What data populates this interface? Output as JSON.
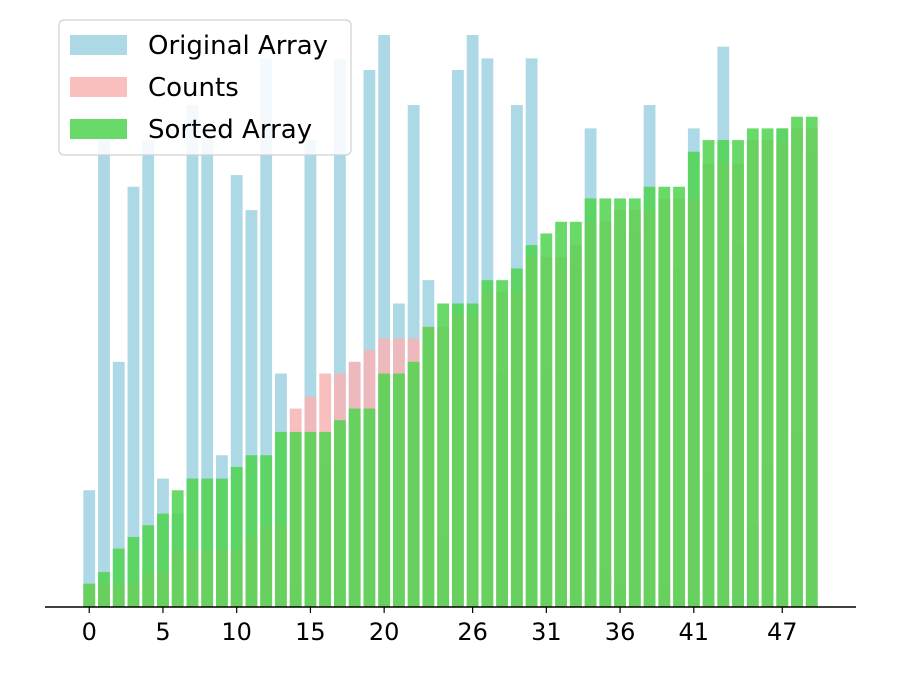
{
  "chart_data": {
    "type": "bar",
    "x": [
      0,
      1,
      2,
      3,
      4,
      5,
      6,
      7,
      8,
      9,
      10,
      11,
      12,
      13,
      14,
      15,
      16,
      17,
      18,
      19,
      20,
      21,
      22,
      23,
      24,
      25,
      26,
      27,
      28,
      29,
      30,
      31,
      32,
      33,
      34,
      35,
      36,
      37,
      38,
      39,
      40,
      41,
      42,
      43,
      44,
      45,
      46,
      47,
      48,
      49
    ],
    "xticks": [
      0,
      5,
      10,
      15,
      20,
      26,
      31,
      36,
      41,
      47
    ],
    "ylim": [
      0,
      49
    ],
    "xlim": [
      -3,
      52
    ],
    "grid": false,
    "legend_position": "top-left",
    "colors": {
      "original": "#add8e6",
      "counts": "#f8b4b4",
      "sorted": "#4fd44f"
    },
    "series": [
      {
        "name": "Original Array",
        "values": [
          10,
          40,
          21,
          36,
          40,
          11,
          8,
          43,
          40,
          13,
          37,
          34,
          47,
          20,
          2,
          40,
          12,
          47,
          21,
          46,
          49,
          26,
          43,
          28,
          6,
          46,
          49,
          47,
          20,
          43,
          47,
          20,
          8,
          29,
          41,
          3,
          2,
          32,
          43,
          2,
          29,
          41,
          11,
          48,
          31,
          7,
          12,
          41,
          15,
          39
        ]
      },
      {
        "name": "Counts",
        "values": [
          2,
          2,
          2,
          2,
          3,
          3,
          5,
          5,
          5,
          5,
          5,
          6,
          7,
          7,
          17,
          18,
          20,
          20,
          21,
          22,
          23,
          23,
          23,
          24,
          24,
          25,
          25,
          27,
          27,
          27,
          30,
          30,
          30,
          31,
          33,
          33,
          34,
          34,
          34,
          35,
          35,
          35,
          38,
          38,
          38,
          40,
          40,
          40,
          41,
          41
        ]
      },
      {
        "name": "Sorted Array",
        "values": [
          2,
          3,
          5,
          6,
          7,
          8,
          10,
          11,
          11,
          11,
          12,
          13,
          13,
          15,
          15,
          15,
          15,
          16,
          17,
          17,
          20,
          20,
          21,
          24,
          26,
          26,
          26,
          28,
          28,
          29,
          31,
          32,
          33,
          33,
          35,
          35,
          35,
          35,
          36,
          36,
          36,
          39,
          40,
          40,
          40,
          41,
          41,
          41,
          42,
          42
        ]
      }
    ]
  }
}
